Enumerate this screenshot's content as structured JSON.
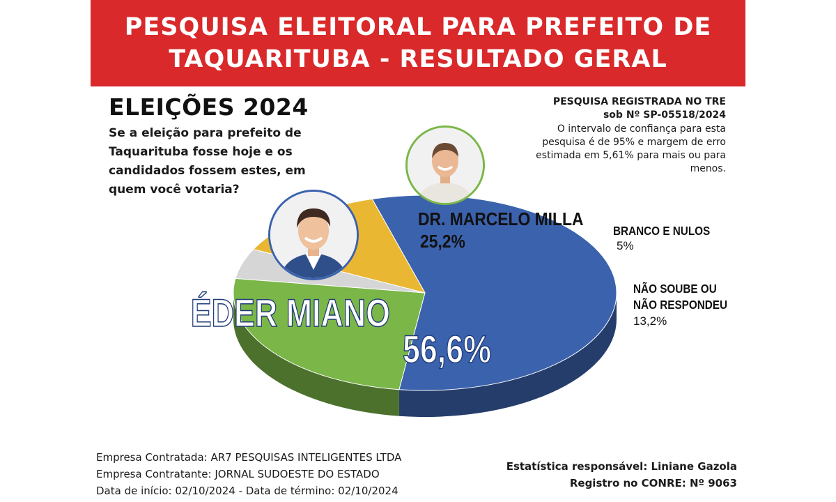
{
  "banner": {
    "line1": "PESQUISA ELEITORAL PARA PREFEITO DE",
    "line2": "TAQUARITUBA - RESULTADO GERAL"
  },
  "heading": "ELEIÇÕES 2024",
  "question": "Se a eleição para prefeito de Taquarituba fosse hoje e os candidados fossem estes, em quem você votaria?",
  "registration": {
    "line1": "PESQUISA REGISTRADA NO TRE",
    "line2": "sob Nº SP-05518/2024",
    "text": "O intervalo de confiança para esta pesquisa é de 95% e margem de erro estimada em 5,61% para mais ou para menos."
  },
  "colors": {
    "banner": "#d9292b",
    "eder": "#3b62ad",
    "marcelo": "#7ab648",
    "branco": "#d6d6d6",
    "nao_soube": "#eab733"
  },
  "chart_data": {
    "type": "pie",
    "title": "",
    "slices": [
      {
        "label": "ÉDER MIANO",
        "value": 56.6,
        "display": "56,6%",
        "color": "#3b62ad"
      },
      {
        "label": "DR. MARCELO MILLA",
        "value": 25.2,
        "display": "25,2%",
        "color": "#7ab648"
      },
      {
        "label": "BRANCO E NULOS",
        "value": 5,
        "display": "5%",
        "color": "#d6d6d6"
      },
      {
        "label": "NÃO SOUBE OU NÃO RESPONDEU",
        "value": 13.2,
        "display": "13,2%",
        "color": "#eab733"
      }
    ]
  },
  "footer": {
    "contratada": "Empresa Contratada: AR7 PESQUISAS INTELIGENTES LTDA",
    "contratante": "Empresa Contratante: JORNAL SUDOESTE DO ESTADO",
    "datas": "Data de início: 02/10/2024 - Data de término: 02/10/2024",
    "estatistica": "Estatística responsável: Liniane Gazola",
    "registro": "Registro no CONRE: Nº 9063"
  }
}
